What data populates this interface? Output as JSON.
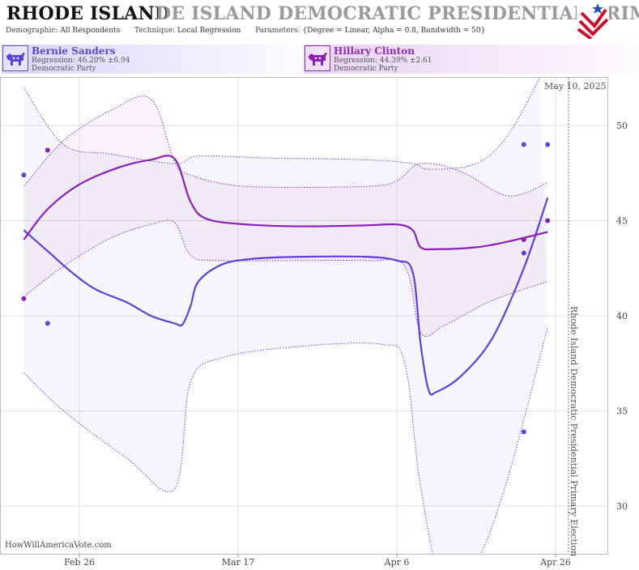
{
  "header": {
    "title": "RHODE ISLAND",
    "title_ghost": "DE ISLAND DEMOCRATIC PRESIDENTIAL PRIMA",
    "demographic_label": "Demographic:",
    "demographic_value": "All Respondents",
    "technique_label": "Technique:",
    "technique_value": "Local Regression",
    "parameters_label": "Parameters:",
    "parameters_value": "{Degree = Linear, Alpha = 0.8, Bandwidth = 50}"
  },
  "candidates": [
    {
      "name": "Bernie Sanders",
      "regression": "Regression: 46.20% ±6.94",
      "party": "Democratic Party",
      "color": "#5b43d6"
    },
    {
      "name": "Hillary Clinton",
      "regression": "Regression: 44.39% ±2.61",
      "party": "Democratic Party",
      "color": "#8a1fb8"
    }
  ],
  "date_stamp": "May 10, 2025",
  "watermark": "HowWillAmericaVote.com",
  "chart_data": {
    "type": "line",
    "xlabel": "",
    "ylabel": "",
    "x_ticks": [
      "Feb 26",
      "Mar 17",
      "Apr 6",
      "Apr 26"
    ],
    "y_ticks": [
      "30",
      "35",
      "40",
      "45",
      "50"
    ],
    "ylim": [
      27.5,
      52.5
    ],
    "grid": true,
    "event_marker_label": "Rhode Island Democratic Presidential Primary Election",
    "event_marker_date": "Apr 26",
    "series": [
      {
        "name": "Bernie Sanders",
        "color": "#5b43d6",
        "line": [
          [
            "Feb 19",
            44.5
          ],
          [
            "Feb 22",
            43.4
          ],
          [
            "Feb 25",
            42.3
          ],
          [
            "Feb 28",
            41.4
          ],
          [
            "Mar 3",
            40.7
          ],
          [
            "Mar 6",
            40.0
          ],
          [
            "Mar 9",
            39.6
          ],
          [
            "Mar 10",
            39.55
          ],
          [
            "Mar 11",
            40.5
          ],
          [
            "Mar 12",
            41.8
          ],
          [
            "Mar 15",
            42.7
          ],
          [
            "Mar 19",
            43.0
          ],
          [
            "Mar 25",
            43.1
          ],
          [
            "Apr 2",
            43.1
          ],
          [
            "Apr 6",
            42.9
          ],
          [
            "Apr 8",
            42.3
          ],
          [
            "Apr 9",
            38.5
          ],
          [
            "Apr 10",
            36.1
          ],
          [
            "Apr 11",
            36.0
          ],
          [
            "Apr 14",
            36.8
          ],
          [
            "Apr 18",
            38.8
          ],
          [
            "Apr 22",
            42.5
          ],
          [
            "Apr 25",
            46.2
          ]
        ],
        "upper": [
          [
            "Feb 19",
            52.0
          ],
          [
            "Feb 24",
            49.0
          ],
          [
            "Mar 1",
            48.5
          ],
          [
            "Mar 9",
            48.0
          ],
          [
            "Mar 12",
            48.4
          ],
          [
            "Mar 20",
            48.3
          ],
          [
            "Apr 2",
            48.2
          ],
          [
            "Apr 8",
            48.0
          ],
          [
            "Apr 10",
            47.7
          ],
          [
            "Apr 16",
            48.0
          ],
          [
            "Apr 20",
            49.5
          ],
          [
            "Apr 24",
            52.5
          ]
        ],
        "lower": [
          [
            "Feb 19",
            37.0
          ],
          [
            "Feb 24",
            35.0
          ],
          [
            "Mar 3",
            32.5
          ],
          [
            "Mar 9",
            30.9
          ],
          [
            "Mar 11",
            36.5
          ],
          [
            "Mar 15",
            37.8
          ],
          [
            "Mar 25",
            38.4
          ],
          [
            "Apr 4",
            38.5
          ],
          [
            "Apr 7",
            37.5
          ],
          [
            "Apr 9",
            31.0
          ],
          [
            "Apr 12",
            25.5
          ],
          [
            "Apr 16",
            27.0
          ],
          [
            "Apr 20",
            31.5
          ],
          [
            "Apr 25",
            39.4
          ]
        ],
        "points": [
          [
            "Feb 19",
            47.4
          ],
          [
            "Feb 22",
            39.6
          ],
          [
            "Apr 22",
            49.0
          ],
          [
            "Apr 22",
            33.9
          ],
          [
            "Apr 25",
            49.0
          ],
          [
            "Apr 22",
            43.3
          ]
        ]
      },
      {
        "name": "Hillary Clinton",
        "color": "#8a1fb8",
        "line": [
          [
            "Feb 19",
            44.0
          ],
          [
            "Feb 22",
            45.6
          ],
          [
            "Feb 26",
            46.9
          ],
          [
            "Mar 2",
            47.8
          ],
          [
            "Mar 6",
            48.2
          ],
          [
            "Mar 9",
            48.25
          ],
          [
            "Mar 11",
            46.0
          ],
          [
            "Mar 13",
            45.1
          ],
          [
            "Mar 18",
            44.8
          ],
          [
            "Mar 25",
            44.7
          ],
          [
            "Apr 2",
            44.75
          ],
          [
            "Apr 6",
            44.8
          ],
          [
            "Apr 8",
            44.5
          ],
          [
            "Apr 9",
            43.6
          ],
          [
            "Apr 11",
            43.5
          ],
          [
            "Apr 16",
            43.6
          ],
          [
            "Apr 20",
            43.9
          ],
          [
            "Apr 25",
            44.4
          ]
        ],
        "upper": [
          [
            "Feb 19",
            46.8
          ],
          [
            "Feb 24",
            49.2
          ],
          [
            "Mar 1",
            50.8
          ],
          [
            "Mar 6",
            51.4
          ],
          [
            "Mar 9",
            48.1
          ],
          [
            "Mar 11",
            47.4
          ],
          [
            "Mar 18",
            46.8
          ],
          [
            "Apr 2",
            46.8
          ],
          [
            "Apr 6",
            47.1
          ],
          [
            "Apr 9",
            48.0
          ],
          [
            "Apr 14",
            47.6
          ],
          [
            "Apr 20",
            46.3
          ],
          [
            "Apr 25",
            47.0
          ]
        ],
        "lower": [
          [
            "Feb 19",
            41.0
          ],
          [
            "Feb 24",
            42.6
          ],
          [
            "Mar 1",
            44.1
          ],
          [
            "Mar 6",
            44.8
          ],
          [
            "Mar 9",
            44.9
          ],
          [
            "Mar 11",
            43.2
          ],
          [
            "Mar 15",
            42.9
          ],
          [
            "Apr 2",
            42.9
          ],
          [
            "Apr 7",
            42.6
          ],
          [
            "Apr 9",
            39.1
          ],
          [
            "Apr 12",
            39.5
          ],
          [
            "Apr 18",
            40.8
          ],
          [
            "Apr 25",
            41.8
          ]
        ],
        "points": [
          [
            "Feb 19",
            40.9
          ],
          [
            "Feb 22",
            48.7
          ],
          [
            "Apr 22",
            44.0
          ],
          [
            "Apr 25",
            45.0
          ]
        ]
      }
    ]
  }
}
